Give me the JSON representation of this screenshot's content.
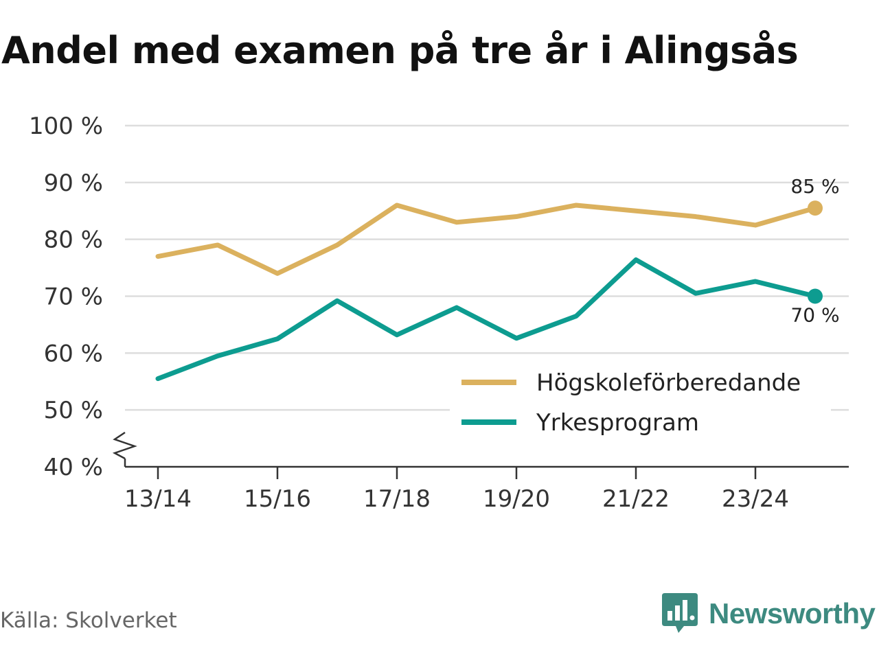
{
  "title": "Andel med examen på tre år i Alingsås",
  "source": "Källa: Skolverket",
  "brand": {
    "name": "Newsworthy",
    "icon": "newsworthy-logo-icon"
  },
  "colors": {
    "series1": "#dbb15e",
    "series2": "#0d9c90",
    "grid": "#dddddd",
    "axis": "#333333",
    "brand": "#3d8a80"
  },
  "chart_data": {
    "type": "line",
    "title": "Andel med examen på tre år i Alingsås",
    "xlabel": "",
    "ylabel": "",
    "x": [
      "13/14",
      "14/15",
      "15/16",
      "16/17",
      "17/18",
      "18/19",
      "19/20",
      "20/21",
      "21/22",
      "22/23",
      "23/24",
      "24/25"
    ],
    "x_tick_labels": [
      "13/14",
      "15/16",
      "17/18",
      "19/20",
      "21/22",
      "23/24"
    ],
    "y_tick_labels": [
      "40 %",
      "50 %",
      "60 %",
      "70 %",
      "80 %",
      "90 %",
      "100 %"
    ],
    "y_ticks": [
      40,
      50,
      60,
      70,
      80,
      90,
      100
    ],
    "ylim": [
      40,
      100
    ],
    "grid": true,
    "legend_position": "bottom-right",
    "series": [
      {
        "name": "Högskoleförberedande",
        "color": "#dbb15e",
        "values": [
          77,
          79,
          74,
          79,
          86,
          83,
          84,
          86,
          85,
          84,
          82.5,
          85.5
        ],
        "end_label": "85 %"
      },
      {
        "name": "Yrkesprogram",
        "color": "#0d9c90",
        "values": [
          55.5,
          59.5,
          62.5,
          69.2,
          63.2,
          68,
          62.6,
          66.5,
          76.4,
          70.5,
          72.6,
          70
        ],
        "end_label": "70 %"
      }
    ]
  }
}
